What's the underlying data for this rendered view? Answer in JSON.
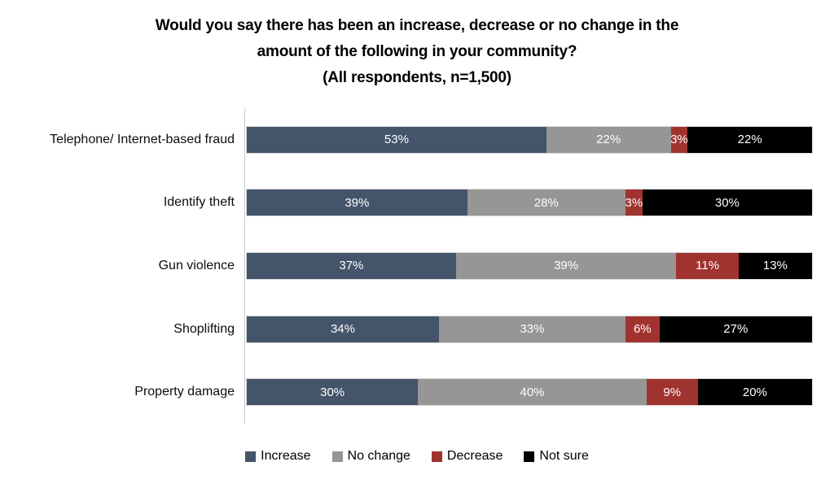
{
  "chart_data": {
    "type": "bar",
    "variant": "horizontal-stacked-100",
    "title_lines": [
      "Would you say there has been an increase, decrease or no change in the",
      "amount of the following in your community?"
    ],
    "subtitle": "(All respondents, n=1,500)",
    "categories": [
      "Telephone/ Internet-based fraud",
      "Identify theft",
      "Gun violence",
      "Shoplifting",
      "Property damage"
    ],
    "series": [
      {
        "name": "Increase",
        "color": "#44546A",
        "values": [
          53,
          39,
          37,
          34,
          30
        ]
      },
      {
        "name": "No change",
        "color": "#969696",
        "values": [
          22,
          28,
          39,
          33,
          40
        ]
      },
      {
        "name": "Decrease",
        "color": "#A1332F",
        "values": [
          3,
          3,
          11,
          6,
          9
        ]
      },
      {
        "name": "Not sure",
        "color": "#000000",
        "values": [
          22,
          30,
          13,
          27,
          20
        ]
      }
    ],
    "value_suffix": "%",
    "xlim": [
      0,
      100
    ],
    "legend_position": "bottom",
    "grid": false,
    "axis_line_color": "#C9C9C9",
    "bar_label_color": "#FFFFFF"
  }
}
